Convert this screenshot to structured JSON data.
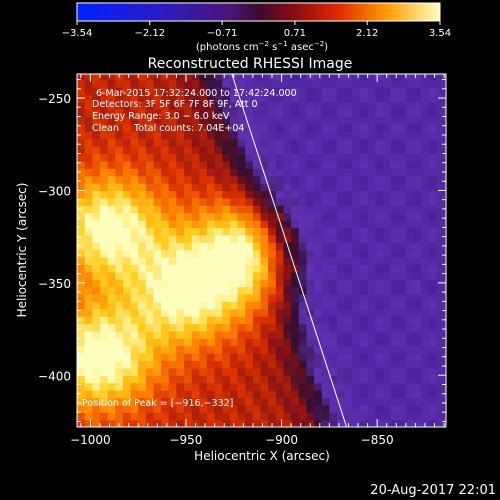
{
  "colorbar": {
    "ticks": [
      "−3.54",
      "−2.12",
      "−0.71",
      "0.71",
      "2.12",
      "3.54"
    ],
    "unit_parts": {
      "open": "(photons cm",
      "e1": "−2",
      "s": " s",
      "e2": "−1",
      "asec": " asec",
      "e3": "−2",
      "close": ")"
    }
  },
  "chart_data": {
    "type": "heatmap",
    "title": "Reconstructed RHESSI Image",
    "xlabel": "Heliocentric X (arcsec)",
    "ylabel": "Heliocentric Y (arcsec)",
    "xlim": [
      -1007,
      -814
    ],
    "ylim": [
      -428,
      -237
    ],
    "xticks": [
      -1000,
      -950,
      -900,
      -850
    ],
    "yticks": [
      -250,
      -300,
      -350,
      -400
    ],
    "xtick_labels": [
      "−1000",
      "−950",
      "−900",
      "−850"
    ],
    "ytick_labels": [
      "−250",
      "−300",
      "−350",
      "−400"
    ],
    "colorbar_range": [
      -3.54,
      3.54
    ],
    "sources": [
      {
        "x": -916,
        "y": -332,
        "level": 1.0
      },
      {
        "x": -950,
        "y": -355,
        "level": 0.85
      },
      {
        "x": -990,
        "y": -320,
        "level": 0.9
      },
      {
        "x": -995,
        "y": -390,
        "level": 0.95
      }
    ],
    "peak": {
      "x": -916,
      "y": -332
    },
    "limb_line": [
      [
        -926,
        -237
      ],
      [
        -866,
        -428
      ]
    ],
    "annotations": {
      "time": "6-Mar-2015 17:32:24.000 to 17:42:24.000",
      "detectors": "Detectors: 3F 5F 6F 7F 8F 9F, Att 0",
      "energy": "Energy Range: 3.0 − 6.0 keV",
      "clean": "Clean     Total counts: 7.04E+04",
      "peak": "Position of Peak = [−916,−332]"
    }
  },
  "footer": {
    "timestamp": "20-Aug-2017 22:01"
  }
}
